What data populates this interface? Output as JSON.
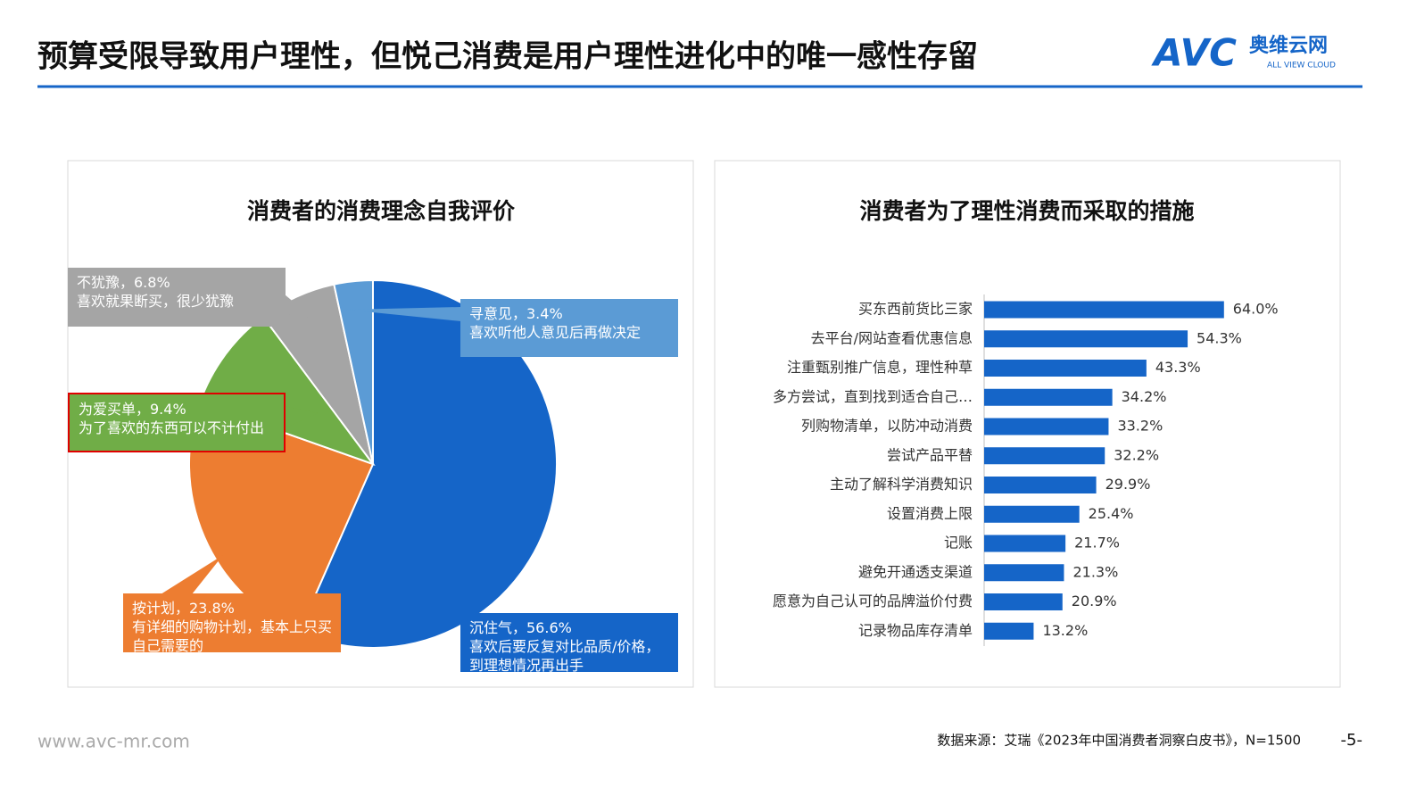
{
  "header": {
    "title": "预算受限导致用户理性，但悦己消费是用户理性进化中的唯一感性存留",
    "logo": {
      "mark": "AVC",
      "name": "奥维云网",
      "tagline": "ALL VIEW CLOUD"
    }
  },
  "chart_data": [
    {
      "type": "pie",
      "title": "消费者的消费理念自我评价",
      "values": [
        56.6,
        23.8,
        9.4,
        6.8,
        3.4
      ],
      "value_labels": [
        "沉住气，56.6%",
        "按计划，23.8%",
        "为爱买单，9.4%",
        "不犹豫，6.8%",
        "寻意见，3.4%"
      ],
      "descriptions": [
        "喜欢后要反复对比品质/价格，到理想情况再出手",
        "有详细的购物计划，基本上只买自己需要的",
        "为了喜欢的东西可以不计付出",
        "喜欢就果断买，很少犹豫",
        "喜欢听他人意见后再做决定"
      ],
      "colors": [
        "#1565c8",
        "#ed7d31",
        "#70ad47",
        "#a5a5a5",
        "#5b9bd5"
      ]
    },
    {
      "type": "bar",
      "orientation": "horizontal",
      "title": "消费者为了理性消费而采取的措施",
      "categories": [
        "买东西前货比三家",
        "去平台/网站查看优惠信息",
        "注重甄别推广信息，理性种草",
        "多方尝试，直到找到适合自己…",
        "列购物清单，以防冲动消费",
        "尝试产品平替",
        "主动了解科学消费知识",
        "设置消费上限",
        "记账",
        "避免开通透支渠道",
        "愿意为自己认可的品牌溢价付费",
        "记录物品库存清单"
      ],
      "values": [
        64.0,
        54.3,
        43.3,
        34.2,
        33.2,
        32.2,
        29.9,
        25.4,
        21.7,
        21.3,
        20.9,
        13.2
      ],
      "value_labels": [
        "64.0%",
        "54.3%",
        "43.3%",
        "34.2%",
        "33.2%",
        "32.2%",
        "29.9%",
        "25.4%",
        "21.7%",
        "21.3%",
        "20.9%",
        "13.2%"
      ],
      "color": "#1565c8"
    }
  ],
  "footer": {
    "url": "www.avc-mr.com",
    "source": "数据来源：艾瑞《2023年中国消费者洞察白皮书》，N=1500",
    "page": "-5-"
  }
}
